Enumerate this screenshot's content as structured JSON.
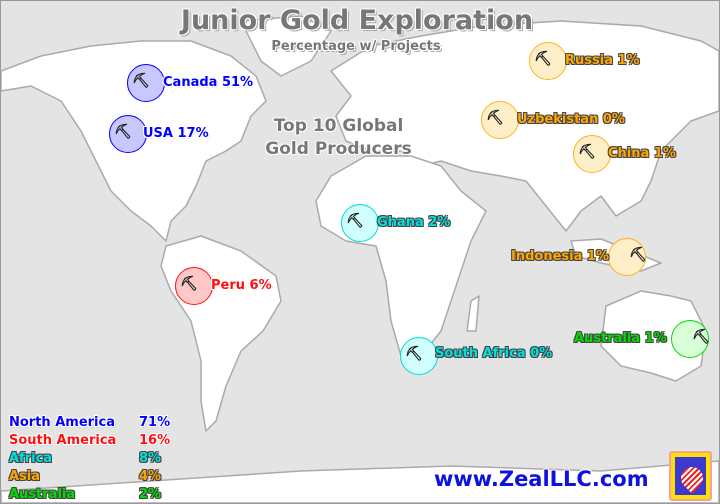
{
  "title": "Junior Gold Exploration",
  "subtitle": "Percentage w/ Projects",
  "center_note": [
    "Top 10 Global",
    "Gold Producers"
  ],
  "markers": [
    {
      "country": "Canada",
      "percent": "51%",
      "region": "North America",
      "icon": "pickaxe-icon"
    },
    {
      "country": "USA",
      "percent": "17%",
      "region": "North America",
      "icon": "pickaxe-icon"
    },
    {
      "country": "Peru",
      "percent": "6%",
      "region": "South America",
      "icon": "pickaxe-icon"
    },
    {
      "country": "Ghana",
      "percent": "2%",
      "region": "Africa",
      "icon": "pickaxe-icon"
    },
    {
      "country": "South Africa",
      "percent": "0%",
      "region": "Africa",
      "icon": "pickaxe-icon"
    },
    {
      "country": "Russia",
      "percent": "1%",
      "region": "Asia",
      "icon": "pickaxe-icon"
    },
    {
      "country": "Uzbekistan",
      "percent": "0%",
      "region": "Asia",
      "icon": "pickaxe-icon"
    },
    {
      "country": "China",
      "percent": "1%",
      "region": "Asia",
      "icon": "pickaxe-icon"
    },
    {
      "country": "Indonesia",
      "percent": "1%",
      "region": "Asia",
      "icon": "pickaxe-icon"
    },
    {
      "country": "Australia",
      "percent": "1%",
      "region": "Australia",
      "icon": "pickaxe-icon"
    }
  ],
  "legend": [
    {
      "region": "North America",
      "percent": "71%",
      "color": "#0000ff"
    },
    {
      "region": "South America",
      "percent": "16%",
      "color": "#ff1010"
    },
    {
      "region": "Africa",
      "percent": "8%",
      "color": "#00e0e0"
    },
    {
      "region": "Asia",
      "percent": "4%",
      "color": "#ffa500"
    },
    {
      "region": "Australia",
      "percent": "2%",
      "color": "#00dd00"
    }
  ],
  "website": "www.ZealLLC.com",
  "colors": {
    "land": "#ffffff",
    "ocean": "#e4e4e4",
    "coast": "#aaaaaa"
  }
}
